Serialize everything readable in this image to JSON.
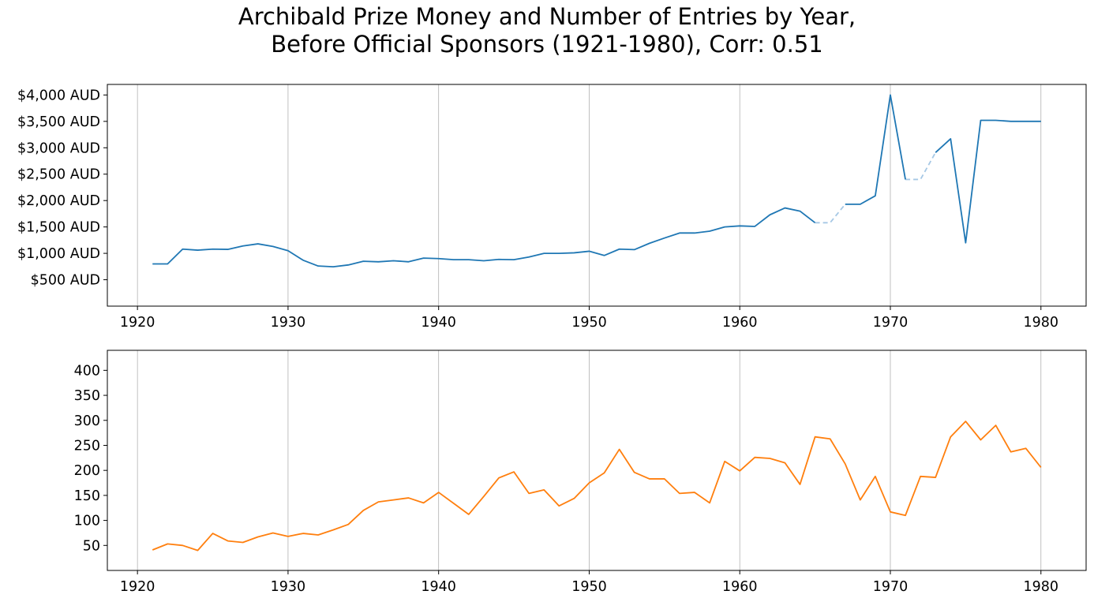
{
  "title_line1": "Archibald Prize Money and Number of Entries by Year,",
  "title_line2": "Before Official Sponsors (1921-1980), Corr: 0.51",
  "chart_data": [
    {
      "type": "line",
      "xlim": [
        1918,
        1983
      ],
      "ylim": [
        0,
        4200
      ],
      "x_ticks": [
        1920,
        1930,
        1940,
        1950,
        1960,
        1970,
        1980
      ],
      "x_tick_labels": [
        "1920",
        "1930",
        "1940",
        "1950",
        "1960",
        "1970",
        "1980"
      ],
      "y_ticks": [
        500,
        1000,
        1500,
        2000,
        2500,
        3000,
        3500,
        4000
      ],
      "y_tick_labels": [
        "$500 AUD",
        "$1,000 AUD",
        "$1,500 AUD",
        "$2,000 AUD",
        "$2,500 AUD",
        "$3,000 AUD",
        "$3,500 AUD",
        "$4,000 AUD"
      ],
      "grid": "vertical",
      "color": "#1f77b4",
      "gap_color": "#a6c8e5",
      "x": [
        1921,
        1922,
        1923,
        1924,
        1925,
        1926,
        1927,
        1928,
        1929,
        1930,
        1931,
        1932,
        1933,
        1934,
        1935,
        1936,
        1937,
        1938,
        1939,
        1940,
        1941,
        1942,
        1943,
        1944,
        1945,
        1946,
        1947,
        1948,
        1949,
        1950,
        1951,
        1952,
        1953,
        1954,
        1955,
        1956,
        1957,
        1958,
        1959,
        1960,
        1961,
        1962,
        1963,
        1964,
        1965,
        1966,
        1967,
        1968,
        1969,
        1970,
        1971,
        1972,
        1973,
        1974,
        1975,
        1976,
        1977,
        1978,
        1979,
        1980
      ],
      "values": [
        800,
        800,
        1080,
        1060,
        1080,
        1075,
        1140,
        1180,
        1130,
        1050,
        870,
        760,
        745,
        780,
        850,
        840,
        860,
        840,
        910,
        900,
        880,
        880,
        860,
        885,
        880,
        930,
        1000,
        1000,
        1010,
        1040,
        960,
        1080,
        1070,
        1190,
        1290,
        1385,
        1385,
        1420,
        1500,
        1520,
        1510,
        1730,
        1860,
        1800,
        1580,
        null,
        1930,
        1930,
        2090,
        4000,
        2400,
        null,
        2910,
        3170,
        1200,
        3520,
        3520,
        3500,
        3500,
        3500
      ],
      "interpolated_gaps": [
        {
          "x": [
            1965,
            1966,
            1967
          ],
          "values": [
            1580,
            1580,
            1930
          ]
        },
        {
          "x": [
            1971,
            1972,
            1973
          ],
          "values": [
            2400,
            2400,
            2910
          ]
        }
      ]
    },
    {
      "type": "line",
      "xlim": [
        1918,
        1983
      ],
      "ylim": [
        0,
        440
      ],
      "x_ticks": [
        1920,
        1930,
        1940,
        1950,
        1960,
        1970,
        1980
      ],
      "x_tick_labels": [
        "1920",
        "1930",
        "1940",
        "1950",
        "1960",
        "1970",
        "1980"
      ],
      "y_ticks": [
        50,
        100,
        150,
        200,
        250,
        300,
        350,
        400
      ],
      "y_tick_labels": [
        "50",
        "100",
        "150",
        "200",
        "250",
        "300",
        "350",
        "400"
      ],
      "grid": "vertical",
      "color": "#ff7f0e",
      "x": [
        1921,
        1922,
        1923,
        1924,
        1925,
        1926,
        1927,
        1928,
        1929,
        1930,
        1931,
        1932,
        1933,
        1934,
        1935,
        1936,
        1937,
        1938,
        1939,
        1940,
        1941,
        1942,
        1943,
        1944,
        1945,
        1946,
        1947,
        1948,
        1949,
        1950,
        1951,
        1952,
        1953,
        1954,
        1955,
        1956,
        1957,
        1958,
        1959,
        1960,
        1961,
        1962,
        1963,
        1964,
        1965,
        1966,
        1967,
        1968,
        1969,
        1970,
        1971,
        1972,
        1973,
        1974,
        1975,
        1976,
        1977,
        1978,
        1979,
        1980
      ],
      "values": [
        41,
        53,
        50,
        40,
        74,
        59,
        56,
        67,
        75,
        68,
        74,
        71,
        81,
        92,
        120,
        137,
        141,
        145,
        135,
        156,
        134,
        112,
        148,
        185,
        197,
        154,
        161,
        129,
        144,
        175,
        195,
        242,
        196,
        183,
        183,
        154,
        156,
        135,
        218,
        199,
        226,
        224,
        215,
        172,
        267,
        263,
        213,
        141,
        188,
        117,
        110,
        188,
        186,
        267,
        298,
        261,
        290,
        237,
        244,
        206
      ]
    }
  ]
}
